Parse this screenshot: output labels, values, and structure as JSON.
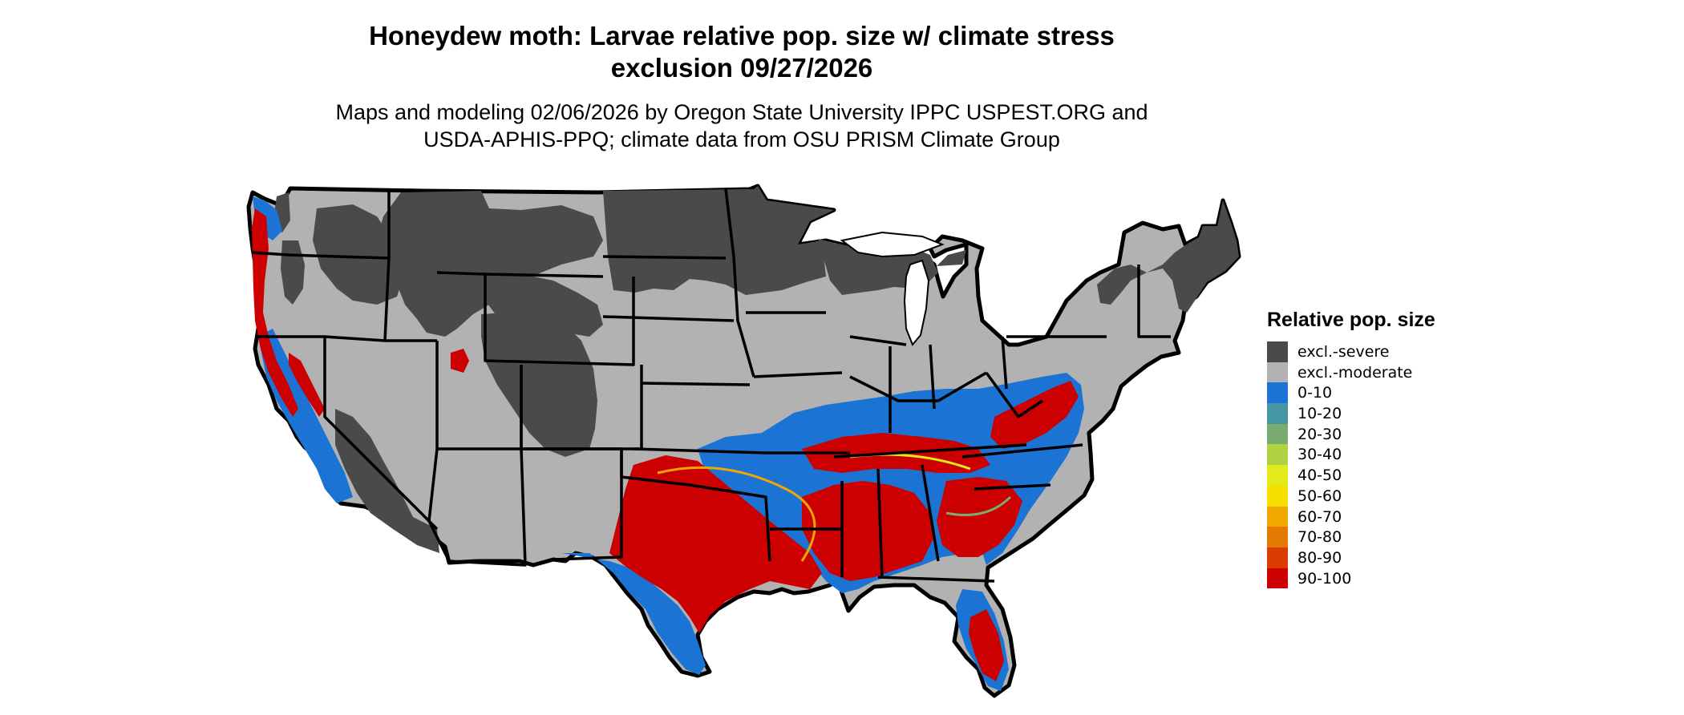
{
  "title": {
    "line1": "Honeydew moth: Larvae relative pop. size w/ climate stress",
    "line2": "exclusion 09/27/2026"
  },
  "subtitle": {
    "line1": "Maps and modeling 02/06/2026 by Oregon State University IPPC USPEST.ORG and",
    "line2": "USDA-APHIS-PPQ; climate data from OSU PRISM Climate Group"
  },
  "legend": {
    "title": "Relative pop. size",
    "items": [
      {
        "label": "excl.-severe",
        "color": "#4a4a4a"
      },
      {
        "label": "excl.-moderate",
        "color": "#b2b2b2"
      },
      {
        "label": "0-10",
        "color": "#1b74d4"
      },
      {
        "label": "10-20",
        "color": "#4796a3"
      },
      {
        "label": "20-30",
        "color": "#79ad70"
      },
      {
        "label": "30-40",
        "color": "#b0d142"
      },
      {
        "label": "40-50",
        "color": "#e2ea1b"
      },
      {
        "label": "50-60",
        "color": "#f7df00"
      },
      {
        "label": "60-70",
        "color": "#f0a800"
      },
      {
        "label": "70-80",
        "color": "#e57a00"
      },
      {
        "label": "80-90",
        "color": "#d93b00"
      },
      {
        "label": "90-100",
        "color": "#cc0000"
      }
    ]
  }
}
